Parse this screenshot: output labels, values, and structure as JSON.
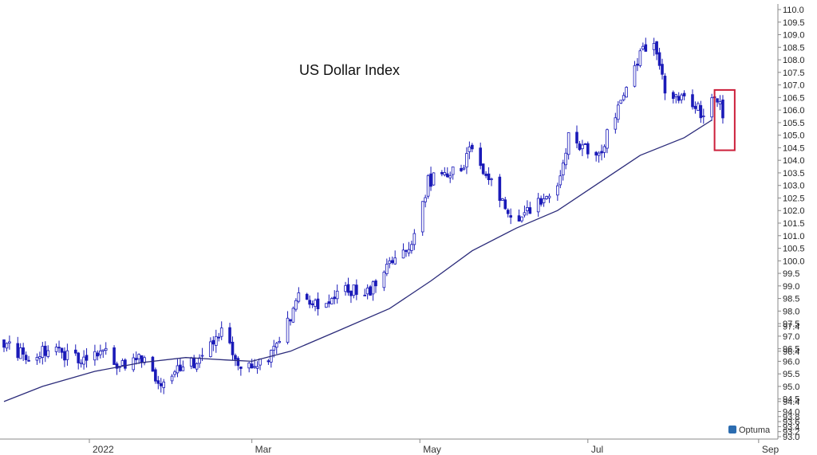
{
  "chart_data": {
    "type": "candlestick",
    "title": "US Dollar Index",
    "brand": "Optuma",
    "colors": {
      "candle": "#1a1ab8",
      "moving_average": "#2b2b7a",
      "highlight_box": "#cc1f3a",
      "axis": "#888888"
    },
    "y_axis": {
      "side": "right",
      "range": [
        93.0,
        110.0
      ],
      "tick_labels": [
        "93.0",
        "93.2",
        "93.4",
        "93.6",
        "93.8",
        "94.0",
        "94.4",
        "94.5",
        "95.0",
        "95.5",
        "96.0",
        "96.4",
        "96.5",
        "97.0",
        "97.4",
        "97.5",
        "98.0",
        "98.5",
        "99.0",
        "99.5",
        "100.0",
        "100.5",
        "101.0",
        "101.5",
        "102.0",
        "102.5",
        "103.0",
        "103.5",
        "104.0",
        "104.5",
        "105.0",
        "105.5",
        "106.0",
        "106.5",
        "107.0",
        "107.5",
        "108.0",
        "108.5",
        "109.0",
        "109.5",
        "110.0"
      ]
    },
    "x_axis": {
      "tick_labels": [
        "2022",
        "Mar",
        "May",
        "Jul",
        "Sep"
      ]
    },
    "grid": false,
    "moving_average": {
      "points": [
        [
          "2021-12-01",
          94.4
        ],
        [
          "2021-12-15",
          95.0
        ],
        [
          "2022-01-03",
          95.6
        ],
        [
          "2022-01-20",
          95.95
        ],
        [
          "2022-02-05",
          96.15
        ],
        [
          "2022-02-20",
          96.05
        ],
        [
          "2022-03-01",
          96.0
        ],
        [
          "2022-03-15",
          96.4
        ],
        [
          "2022-04-01",
          97.2
        ],
        [
          "2022-04-20",
          98.1
        ],
        [
          "2022-05-05",
          99.2
        ],
        [
          "2022-05-20",
          100.4
        ],
        [
          "2022-06-05",
          101.3
        ],
        [
          "2022-06-20",
          102.0
        ],
        [
          "2022-07-05",
          103.1
        ],
        [
          "2022-07-20",
          104.2
        ],
        [
          "2022-08-05",
          104.9
        ],
        [
          "2022-08-15",
          105.6
        ]
      ]
    },
    "price_path": [
      [
        "2021-12-01",
        96.8
      ],
      [
        "2021-12-08",
        96.2
      ],
      [
        "2021-12-15",
        96.4
      ],
      [
        "2021-12-22",
        96.3
      ],
      [
        "2021-12-29",
        96.1
      ],
      [
        "2022-01-05",
        96.5
      ],
      [
        "2022-01-12",
        95.9
      ],
      [
        "2022-01-19",
        96.2
      ],
      [
        "2022-01-26",
        95.1
      ],
      [
        "2022-02-02",
        95.6
      ],
      [
        "2022-02-09",
        96.0
      ],
      [
        "2022-02-14",
        96.9
      ],
      [
        "2022-02-18",
        97.1
      ],
      [
        "2022-02-22",
        96.3
      ],
      [
        "2022-02-25",
        95.6
      ],
      [
        "2022-03-03",
        96.0
      ],
      [
        "2022-03-08",
        96.2
      ],
      [
        "2022-03-14",
        97.6
      ],
      [
        "2022-03-18",
        98.5
      ],
      [
        "2022-03-22",
        98.2
      ],
      [
        "2022-03-29",
        98.3
      ],
      [
        "2022-04-05",
        98.9
      ],
      [
        "2022-04-11",
        98.6
      ],
      [
        "2022-04-18",
        99.6
      ],
      [
        "2022-04-25",
        100.2
      ],
      [
        "2022-04-29",
        101.0
      ],
      [
        "2022-05-04",
        103.2
      ],
      [
        "2022-05-10",
        103.4
      ],
      [
        "2022-05-16",
        103.6
      ],
      [
        "2022-05-20",
        104.6
      ],
      [
        "2022-05-25",
        103.5
      ],
      [
        "2022-05-31",
        102.2
      ],
      [
        "2022-06-07",
        101.7
      ],
      [
        "2022-06-14",
        102.3
      ],
      [
        "2022-06-20",
        103.2
      ],
      [
        "2022-06-24",
        105.0
      ],
      [
        "2022-06-29",
        104.6
      ],
      [
        "2022-07-05",
        104.2
      ],
      [
        "2022-07-10",
        105.6
      ],
      [
        "2022-07-15",
        107.0
      ],
      [
        "2022-07-20",
        108.3
      ],
      [
        "2022-07-25",
        108.5
      ],
      [
        "2022-07-29",
        106.9
      ],
      [
        "2022-08-03",
        106.5
      ],
      [
        "2022-08-08",
        106.2
      ],
      [
        "2022-08-12",
        105.8
      ],
      [
        "2022-08-15",
        106.4
      ],
      [
        "2022-08-18",
        106.3
      ],
      [
        "2022-08-20",
        105.0
      ]
    ],
    "highlight_box": {
      "from": "2022-08-16",
      "to": "2022-08-21",
      "y_range": [
        104.4,
        106.8
      ]
    }
  }
}
